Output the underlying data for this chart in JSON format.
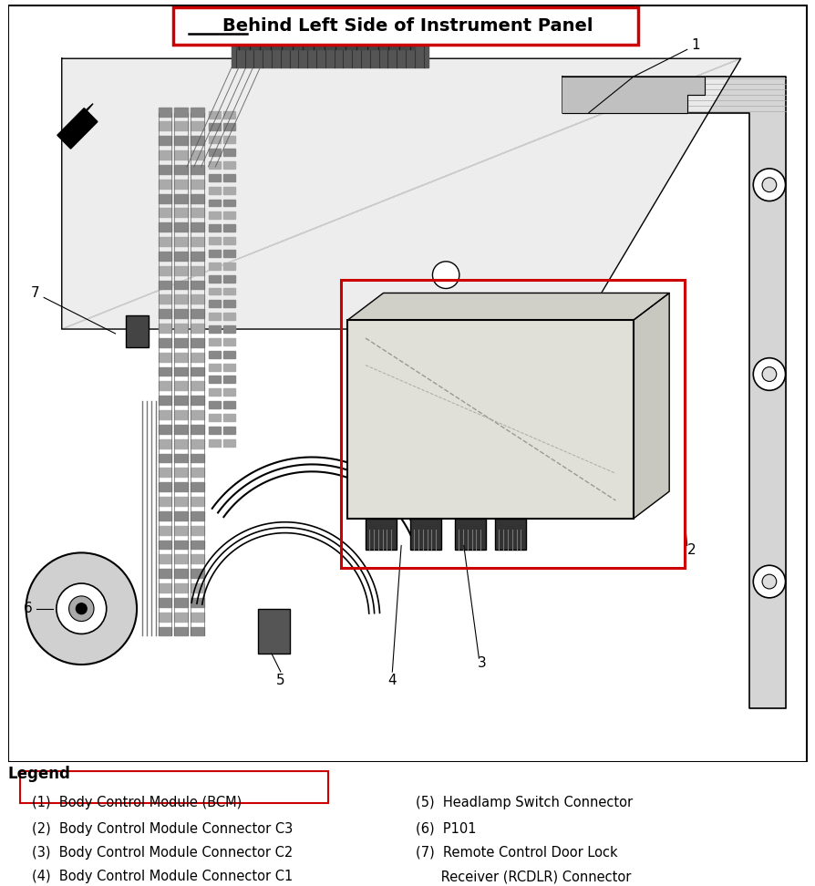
{
  "title_part1": "Behind",
  "title_part2": " Left Side of Instrument Panel",
  "title_box_color": "#cc0000",
  "background_color": "#ffffff",
  "legend_title": "Legend",
  "legend_items_left": [
    [
      "(1)  Body Control Module (BCM)",
      true
    ],
    [
      "(2)  Body Control Module Connector C3",
      false
    ],
    [
      "(3)  Body Control Module Connector C2",
      false
    ],
    [
      "(4)  Body Control Module Connector C1",
      false
    ]
  ],
  "legend_items_right": [
    [
      "(5)  Headlamp Switch Connector",
      false
    ],
    [
      "(6)  P101",
      false
    ],
    [
      "(7)  Remote Control Door Lock",
      false
    ],
    [
      "      Receiver (RCDLR) Connector",
      false
    ]
  ],
  "fig_width": 8.95,
  "fig_height": 9.72,
  "diagram_border_color": "#000000",
  "callout_numbers": [
    "1",
    "2",
    "3",
    "4",
    "5",
    "6",
    "7"
  ],
  "title_fontsize": 13,
  "legend_fontsize": 10.5,
  "legend_title_fontsize": 12
}
